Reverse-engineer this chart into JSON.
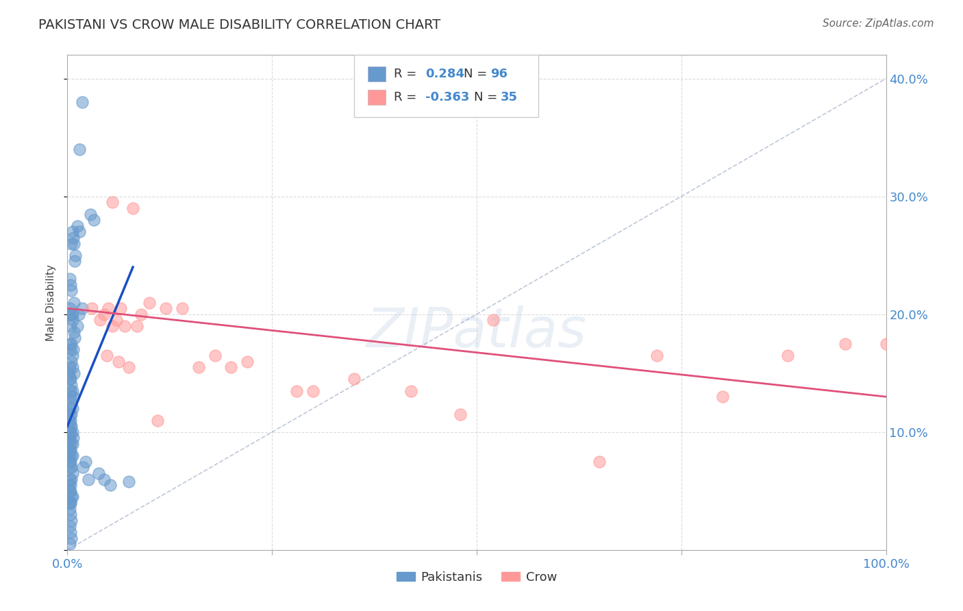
{
  "title": "PAKISTANI VS CROW MALE DISABILITY CORRELATION CHART",
  "source": "Source: ZipAtlas.com",
  "ylabel": "Male Disability",
  "xlim": [
    0,
    100
  ],
  "ylim": [
    0,
    42
  ],
  "grid_color": "#cccccc",
  "background_color": "#ffffff",
  "blue_color": "#6699CC",
  "pink_color": "#FF9999",
  "blue_line_color": "#1a4fc4",
  "pink_line_color": "#e0507a",
  "dash_line_color": "#8899bb",
  "pakistani_x": [
    1.8,
    1.5,
    3.2,
    0.8,
    2.8,
    1.2,
    0.5,
    0.6,
    1.0,
    0.7,
    0.4,
    0.3,
    0.9,
    1.5,
    0.5,
    1.8,
    0.6,
    1.4,
    0.8,
    0.3,
    0.2,
    0.6,
    0.5,
    1.2,
    0.8,
    0.4,
    0.9,
    0.3,
    0.7,
    0.5,
    0.4,
    0.6,
    0.5,
    0.3,
    0.8,
    0.6,
    0.4,
    0.2,
    0.5,
    0.3,
    0.6,
    0.7,
    0.4,
    0.5,
    0.3,
    0.4,
    0.6,
    0.5,
    0.4,
    0.3,
    0.2,
    0.4,
    0.6,
    0.5,
    0.3,
    0.7,
    0.4,
    0.5,
    0.3,
    0.6,
    0.2,
    0.4,
    0.5,
    0.3,
    0.6,
    0.4,
    0.2,
    0.5,
    0.3,
    0.4,
    2.2,
    1.9,
    3.8,
    2.6,
    0.6,
    0.3,
    0.4,
    0.5,
    0.2,
    0.4,
    0.3,
    0.5,
    0.4,
    0.6,
    4.5,
    5.2,
    7.5,
    0.2,
    0.3,
    0.4,
    0.5,
    0.3,
    0.4,
    0.5,
    0.3,
    0.4
  ],
  "pakistani_y": [
    38.0,
    34.0,
    28.0,
    26.0,
    28.5,
    27.5,
    26.0,
    27.0,
    25.0,
    26.5,
    22.5,
    23.0,
    24.5,
    27.0,
    22.0,
    20.5,
    20.0,
    20.0,
    21.0,
    20.5,
    20.0,
    19.5,
    20.0,
    19.0,
    18.5,
    19.0,
    18.0,
    17.5,
    17.0,
    17.5,
    17.0,
    16.5,
    16.0,
    15.5,
    15.0,
    15.5,
    14.5,
    15.0,
    14.0,
    14.5,
    13.5,
    13.0,
    13.5,
    12.5,
    12.0,
    13.0,
    12.0,
    11.5,
    11.0,
    11.5,
    11.0,
    10.5,
    10.0,
    10.5,
    10.0,
    9.5,
    10.0,
    9.0,
    9.5,
    9.0,
    9.0,
    8.5,
    8.0,
    8.5,
    8.0,
    7.5,
    8.0,
    7.0,
    7.5,
    7.0,
    7.5,
    7.0,
    6.5,
    6.0,
    6.5,
    6.0,
    5.5,
    6.0,
    5.5,
    5.0,
    5.0,
    4.5,
    4.0,
    4.5,
    6.0,
    5.5,
    5.8,
    4.0,
    3.5,
    3.0,
    2.5,
    2.0,
    1.5,
    1.0,
    0.5,
    4.0
  ],
  "crow_x": [
    5.0,
    4.0,
    8.0,
    6.5,
    5.5,
    7.0,
    4.5,
    3.0,
    9.0,
    6.0,
    10.0,
    12.0,
    8.5,
    14.0,
    18.0,
    22.0,
    28.0,
    35.0,
    42.0,
    52.0,
    65.0,
    72.0,
    80.0,
    88.0,
    95.0,
    100.0,
    5.5,
    4.8,
    6.2,
    7.5,
    11.0,
    16.0,
    20.0,
    30.0,
    48.0
  ],
  "crow_y": [
    20.5,
    19.5,
    29.0,
    20.5,
    29.5,
    19.0,
    20.0,
    20.5,
    20.0,
    19.5,
    21.0,
    20.5,
    19.0,
    20.5,
    16.5,
    16.0,
    13.5,
    14.5,
    13.5,
    19.5,
    7.5,
    16.5,
    13.0,
    16.5,
    17.5,
    17.5,
    19.0,
    16.5,
    16.0,
    15.5,
    11.0,
    15.5,
    15.5,
    13.5,
    11.5
  ],
  "blue_line_x": [
    0.0,
    8.0
  ],
  "blue_line_y": [
    10.5,
    24.0
  ],
  "pink_line_x": [
    0.0,
    100.0
  ],
  "pink_line_y": [
    20.5,
    13.0
  ],
  "dash_line_x": [
    0.0,
    100.0
  ],
  "dash_line_y": [
    0.0,
    40.0
  ]
}
